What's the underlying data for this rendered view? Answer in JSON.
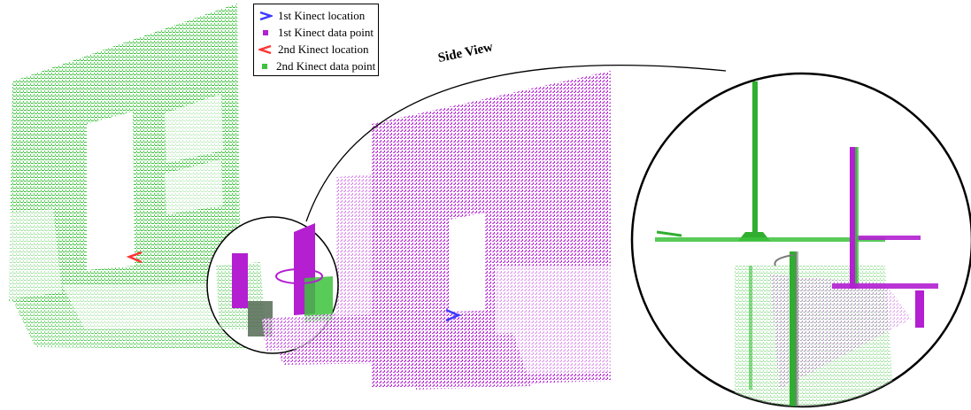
{
  "legend": {
    "items": [
      {
        "label": "1st Kinect location",
        "icon": "blue-chevron-right-icon",
        "color": "#3b3bff"
      },
      {
        "label": "1st Kinect data point",
        "icon": "magenta-square-icon",
        "color": "#b31fd1"
      },
      {
        "label": "2nd Kinect location",
        "icon": "red-chevron-left-icon",
        "color": "#ff3333"
      },
      {
        "label": "2nd Kinect data point",
        "icon": "green-square-icon",
        "color": "#3cc23c"
      }
    ]
  },
  "side_view_label": "Side View",
  "colors": {
    "first_kinect": "#b31fd1",
    "second_kinect": "#3cc23c",
    "first_location": "#3b3bff",
    "second_location": "#ff3333"
  }
}
